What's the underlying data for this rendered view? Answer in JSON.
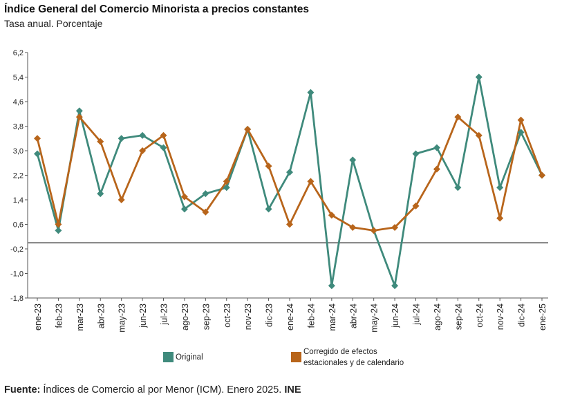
{
  "title": "Índice General del Comercio Minorista a precios constantes",
  "subtitle": "Tasa anual. Porcentaje",
  "source": {
    "label": "Fuente:",
    "text": "Índices de Comercio al por Menor (ICM). Enero 2025.",
    "org": "INE"
  },
  "colors": {
    "original": "#3f8a7c",
    "corrected": "#b8651b",
    "zero_line": "#808080"
  },
  "chart_data": {
    "type": "line",
    "title": "Índice General del Comercio Minorista a precios constantes",
    "ylabel": "Tasa anual. Porcentaje",
    "xlabel": "",
    "ylim": [
      -1.8,
      6.2
    ],
    "yticks": [
      6.2,
      5.4,
      4.6,
      3.8,
      3.0,
      2.2,
      1.4,
      0.6,
      -0.2,
      -1.0,
      -1.8
    ],
    "ytick_labels": [
      "6,2",
      "5,4",
      "4,6",
      "3,8",
      "3,0",
      "2,2",
      "1,4",
      "0,6",
      "-0,2",
      "-1,0",
      "-1,8"
    ],
    "reference_line": 0,
    "categories": [
      "ene-23",
      "feb-23",
      "mar-23",
      "abr-23",
      "may-23",
      "jun-23",
      "jul-23",
      "ago-23",
      "sep-23",
      "oct-23",
      "nov-23",
      "dic-23",
      "ene-24",
      "feb-24",
      "mar-24",
      "abr-24",
      "may-24",
      "jun-24",
      "jul-24",
      "ago-24",
      "sep-24",
      "oct-24",
      "nov-24",
      "dic-24",
      "ene-25"
    ],
    "series": [
      {
        "name": "Original",
        "color": "#3f8a7c",
        "values": [
          2.9,
          0.4,
          4.3,
          1.6,
          3.4,
          3.5,
          3.1,
          1.1,
          1.6,
          1.8,
          3.7,
          1.1,
          2.3,
          4.9,
          -1.4,
          2.7,
          0.4,
          -1.4,
          2.9,
          3.1,
          1.8,
          5.4,
          1.8,
          3.6,
          2.2
        ]
      },
      {
        "name": "Corregido de efectos estacionales y de calendario",
        "color": "#b8651b",
        "values": [
          3.4,
          0.6,
          4.1,
          3.3,
          1.4,
          3.0,
          3.5,
          1.5,
          1.0,
          2.0,
          3.7,
          2.5,
          0.6,
          2.0,
          0.9,
          0.5,
          0.4,
          0.5,
          1.2,
          2.4,
          4.1,
          3.5,
          0.8,
          4.0,
          2.2
        ]
      }
    ],
    "legend": {
      "position": "bottom",
      "items": [
        {
          "label": "Original",
          "color": "#3f8a7c"
        },
        {
          "label_line1": "Corregido de efectos",
          "label_line2": "estacionales y de calendario",
          "color": "#b8651b"
        }
      ]
    }
  }
}
